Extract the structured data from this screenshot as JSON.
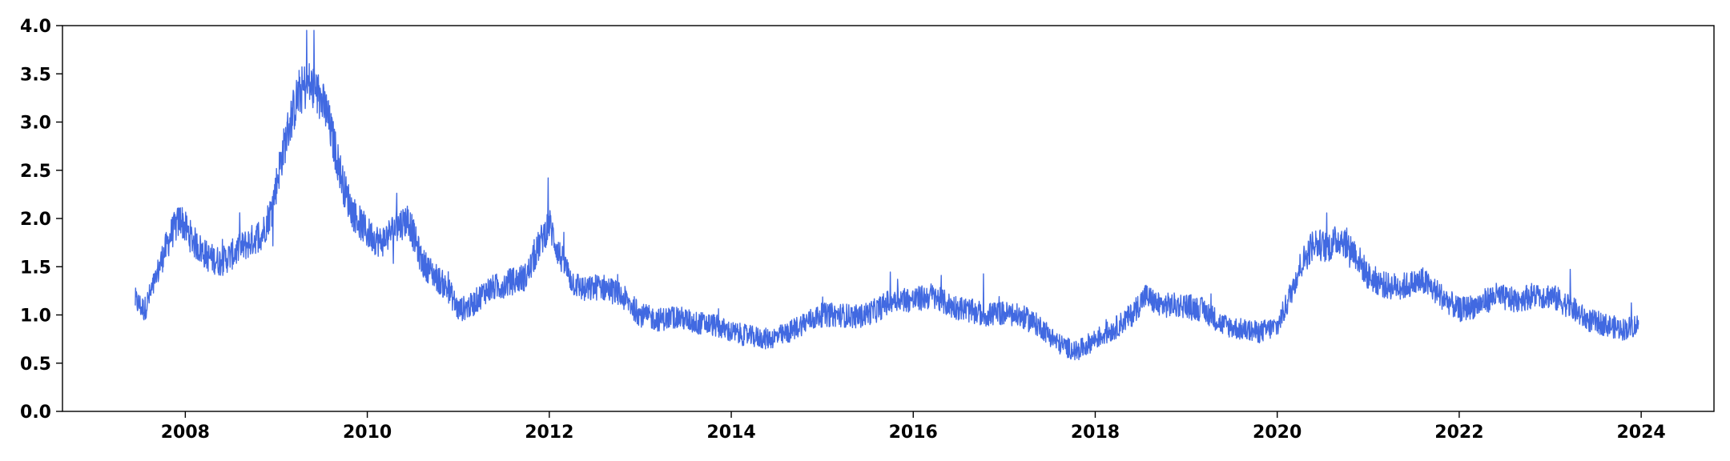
{
  "chart_data": {
    "type": "line",
    "title": "",
    "xlabel": "",
    "ylabel": "",
    "xlim": [
      2006.65,
      2024.8
    ],
    "ylim": [
      0,
      4
    ],
    "x_ticks": [
      "2008",
      "2010",
      "2012",
      "2014",
      "2016",
      "2018",
      "2020",
      "2022",
      "2024"
    ],
    "y_ticks": [
      "0.0",
      "0.5",
      "1.0",
      "1.5",
      "2.0",
      "2.5",
      "3.0",
      "3.5",
      "4.0"
    ],
    "grid": false,
    "legend": "none",
    "line_color": "#4169e1",
    "series": [
      {
        "x": [
          2007.45,
          2007.55,
          2007.65,
          2007.75,
          2007.85,
          2007.95,
          2008.0,
          2008.1,
          2008.25,
          2008.4,
          2008.55,
          2008.7,
          2008.85,
          2008.95,
          2009.05,
          2009.15,
          2009.25,
          2009.35,
          2009.45,
          2009.55,
          2009.65,
          2009.75,
          2009.85,
          2010.0,
          2010.15,
          2010.3,
          2010.45,
          2010.6,
          2010.75,
          2010.9,
          2011.0,
          2011.15,
          2011.3,
          2011.45,
          2011.6,
          2011.75,
          2011.9,
          2012.0,
          2012.1,
          2012.25,
          2012.4,
          2012.55,
          2012.7,
          2012.85,
          2013.0,
          2013.2,
          2013.4,
          2013.6,
          2013.8,
          2014.0,
          2014.2,
          2014.4,
          2014.6,
          2014.8,
          2015.0,
          2015.2,
          2015.4,
          2015.6,
          2015.8,
          2016.0,
          2016.2,
          2016.4,
          2016.6,
          2016.8,
          2017.0,
          2017.2,
          2017.4,
          2017.6,
          2017.8,
          2018.0,
          2018.2,
          2018.4,
          2018.55,
          2018.7,
          2018.9,
          2019.0,
          2019.2,
          2019.4,
          2019.6,
          2019.8,
          2020.0,
          2020.1,
          2020.25,
          2020.4,
          2020.55,
          2020.7,
          2020.85,
          2021.0,
          2021.2,
          2021.4,
          2021.6,
          2021.8,
          2022.0,
          2022.2,
          2022.4,
          2022.6,
          2022.8,
          2023.0,
          2023.2,
          2023.4,
          2023.6,
          2023.8,
          2023.97
        ],
        "y": [
          1.15,
          1.05,
          1.3,
          1.6,
          1.85,
          2.0,
          1.9,
          1.75,
          1.6,
          1.55,
          1.65,
          1.75,
          1.85,
          2.1,
          2.6,
          3.0,
          3.3,
          3.4,
          3.3,
          3.1,
          2.7,
          2.3,
          2.05,
          1.85,
          1.75,
          1.9,
          2.0,
          1.55,
          1.4,
          1.25,
          1.05,
          1.1,
          1.25,
          1.3,
          1.35,
          1.4,
          1.75,
          1.95,
          1.65,
          1.35,
          1.25,
          1.3,
          1.25,
          1.15,
          1.0,
          0.95,
          0.98,
          0.92,
          0.9,
          0.82,
          0.78,
          0.75,
          0.8,
          0.92,
          1.0,
          1.0,
          0.98,
          1.05,
          1.18,
          1.15,
          1.2,
          1.1,
          1.05,
          1.0,
          1.02,
          0.98,
          0.88,
          0.7,
          0.62,
          0.75,
          0.85,
          1.0,
          1.2,
          1.1,
          1.1,
          1.1,
          1.05,
          0.9,
          0.85,
          0.82,
          0.88,
          1.1,
          1.5,
          1.75,
          1.7,
          1.8,
          1.65,
          1.4,
          1.3,
          1.3,
          1.35,
          1.2,
          1.05,
          1.1,
          1.2,
          1.15,
          1.2,
          1.2,
          1.1,
          0.95,
          0.9,
          0.85,
          0.9
        ]
      }
    ]
  }
}
